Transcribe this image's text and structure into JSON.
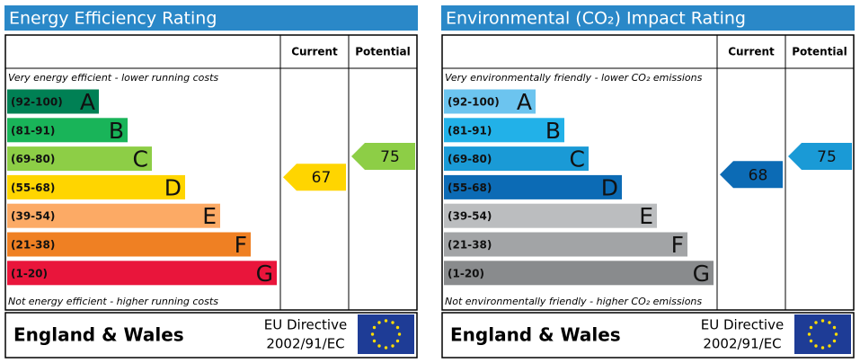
{
  "panels": [
    {
      "title": "Energy Efficiency Rating",
      "col_current": "Current",
      "col_potential": "Potential",
      "top_note": "Very energy efficient - lower running costs",
      "bottom_note": "Not energy efficient - higher running costs",
      "bands": [
        {
          "range": "(92-100)",
          "letter": "A",
          "color": "#008054"
        },
        {
          "range": "(81-91)",
          "letter": "B",
          "color": "#19b459"
        },
        {
          "range": "(69-80)",
          "letter": "C",
          "color": "#8dce46"
        },
        {
          "range": "(55-68)",
          "letter": "D",
          "color": "#ffd500"
        },
        {
          "range": "(39-54)",
          "letter": "E",
          "color": "#fcaa65"
        },
        {
          "range": "(21-38)",
          "letter": "F",
          "color": "#ef8023"
        },
        {
          "range": "(1-20)",
          "letter": "G",
          "color": "#e9153b"
        }
      ],
      "current": 67,
      "potential": 75,
      "footer": {
        "region": "England & Wales",
        "directive": "EU Directive",
        "code": "2002/91/EC"
      }
    },
    {
      "title": "Environmental (CO₂) Impact Rating",
      "col_current": "Current",
      "col_potential": "Potential",
      "top_note": "Very environmentally friendly - lower CO₂ emissions",
      "bottom_note": "Not environmentally friendly - higher CO₂ emissions",
      "bands": [
        {
          "range": "(92-100)",
          "letter": "A",
          "color": "#6cc4ef"
        },
        {
          "range": "(81-91)",
          "letter": "B",
          "color": "#22b1e8"
        },
        {
          "range": "(69-80)",
          "letter": "C",
          "color": "#1a9ad6"
        },
        {
          "range": "(55-68)",
          "letter": "D",
          "color": "#0c6bb5"
        },
        {
          "range": "(39-54)",
          "letter": "E",
          "color": "#bbbdbf"
        },
        {
          "range": "(21-38)",
          "letter": "F",
          "color": "#a2a4a6"
        },
        {
          "range": "(1-20)",
          "letter": "G",
          "color": "#898b8d"
        }
      ],
      "current": 68,
      "potential": 75,
      "footer": {
        "region": "England & Wales",
        "directive": "EU Directive",
        "code": "2002/91/EC"
      }
    }
  ]
}
